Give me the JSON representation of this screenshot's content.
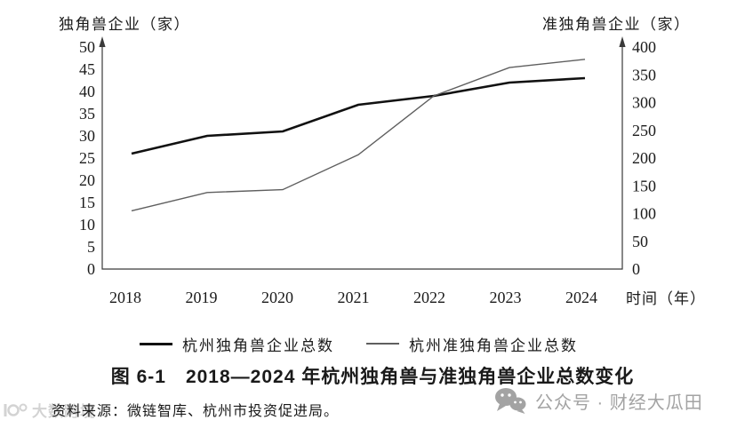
{
  "figure": {
    "caption": "图 6-1　2018—2024 年杭州独角兽与准独角兽企业总数变化",
    "source": "资料来源：微链智库、杭州市投资促进局。"
  },
  "chart_data": {
    "type": "line",
    "categories": [
      "2018",
      "2019",
      "2020",
      "2021",
      "2022",
      "2023",
      "2024"
    ],
    "series": [
      {
        "name": "杭州独角兽企业总数",
        "axis": "left",
        "color": "#111111",
        "stroke_width": 2.6,
        "values": [
          26,
          30,
          31,
          37,
          39,
          42,
          43
        ]
      },
      {
        "name": "杭州准独角兽企业总数",
        "axis": "right",
        "color": "#5f5f5f",
        "stroke_width": 1.4,
        "values": [
          105,
          138,
          143,
          206,
          312,
          363,
          378
        ]
      }
    ],
    "left_axis": {
      "label": "独角兽企业（家）",
      "min": 0,
      "max": 50,
      "step": 5
    },
    "right_axis": {
      "label": "准独角兽企业（家）",
      "min": 0,
      "max": 400,
      "step": 50
    },
    "x_axis": {
      "label": "时间（年）"
    },
    "grid": false,
    "legend_position": "bottom"
  },
  "watermarks": {
    "bottom_left_logo_text": "大数跨境",
    "bottom_right_text": "公众号 · 财经大瓜田"
  },
  "colors": {
    "text": "#1a1a1a",
    "axis": "#3a3a3a",
    "watermark_right": "#a3a3a3",
    "watermark_left": "#d3d3d3"
  }
}
